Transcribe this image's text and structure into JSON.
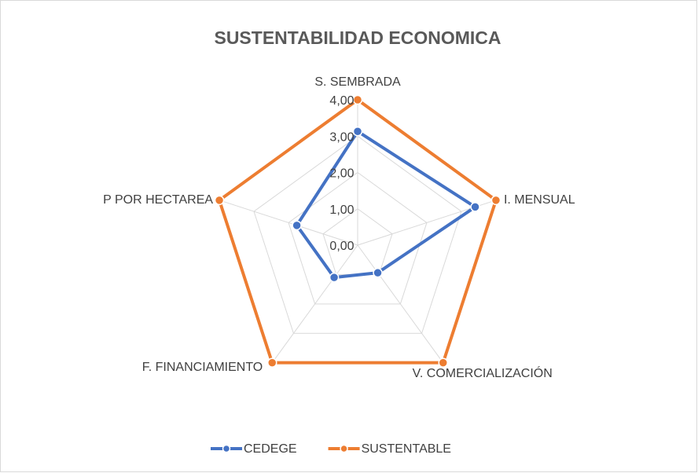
{
  "chart_data": {
    "type": "radar",
    "title": "SUSTENTABILIDAD ECONOMICA",
    "categories": [
      "S. SEMBRADA",
      "I. MENSUAL",
      "V. COMERCIALIZACIÓN",
      "F. FINANCIAMIENTO",
      "P POR HECTAREA"
    ],
    "series": [
      {
        "name": "CEDEGE",
        "color": "#4472c4",
        "values": [
          3.13,
          3.4,
          0.94,
          1.1,
          1.76
        ]
      },
      {
        "name": "SUSTENTABLE",
        "color": "#ed7d31",
        "values": [
          4,
          4,
          4,
          4,
          4
        ]
      }
    ],
    "ylim": [
      0,
      4
    ],
    "yticks": [
      {
        "value": 0,
        "label": "0,00"
      },
      {
        "value": 1,
        "label": "1,00"
      },
      {
        "value": 2,
        "label": "2,00"
      },
      {
        "value": 3,
        "label": "3,00"
      },
      {
        "value": 4,
        "label": "4,00"
      }
    ],
    "grid": true,
    "legend": "bottom"
  }
}
